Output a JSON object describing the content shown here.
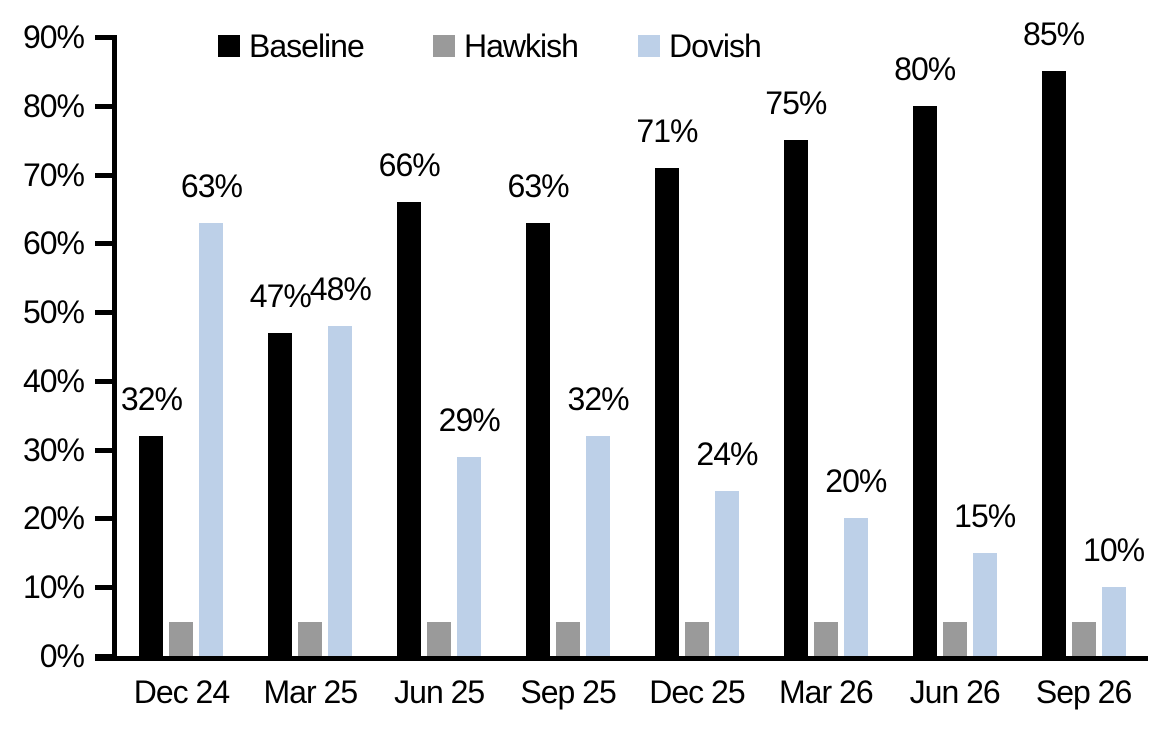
{
  "chart_data": {
    "type": "bar",
    "title": "",
    "xlabel": "",
    "ylabel": "",
    "categories": [
      "Dec 24",
      "Mar 25",
      "Jun 25",
      "Sep 25",
      "Dec 25",
      "Mar 26",
      "Jun 26",
      "Sep 26"
    ],
    "series": [
      {
        "name": "Baseline",
        "color": "#000000",
        "values": [
          32,
          47,
          66,
          63,
          71,
          75,
          80,
          85
        ],
        "labels": [
          "32%",
          "47%",
          "66%",
          "63%",
          "71%",
          "75%",
          "80%",
          "85%"
        ]
      },
      {
        "name": "Hawkish",
        "color": "#9a9a9a",
        "values": [
          5,
          5,
          5,
          5,
          5,
          5,
          5,
          5
        ],
        "labels": [
          null,
          null,
          null,
          null,
          null,
          null,
          null,
          null
        ]
      },
      {
        "name": "Dovish",
        "color": "#bdd0e8",
        "values": [
          63,
          48,
          29,
          32,
          24,
          20,
          15,
          10
        ],
        "labels": [
          "63%",
          "48%",
          "29%",
          "32%",
          "24%",
          "20%",
          "15%",
          "10%"
        ]
      }
    ],
    "ylim": [
      0,
      90
    ],
    "y_tick_labels": [
      "0%",
      "10%",
      "20%",
      "30%",
      "40%",
      "50%",
      "60%",
      "70%",
      "80%",
      "90%"
    ],
    "grid": false,
    "legend_position": "top",
    "axis_color": "#000000"
  }
}
